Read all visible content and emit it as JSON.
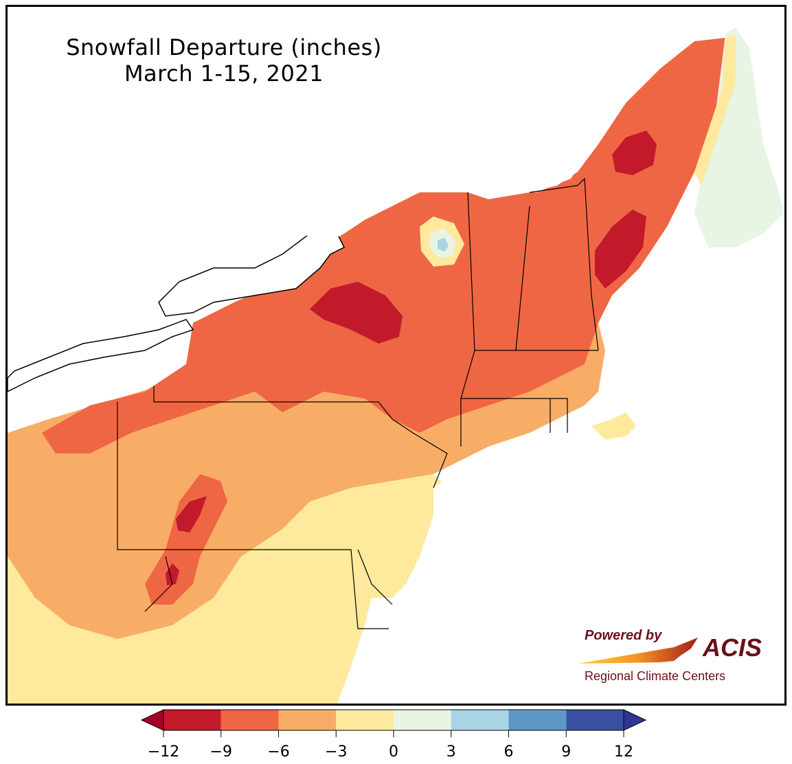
{
  "title": {
    "line1": "Snowfall Departure (inches)",
    "line2": "March 1-15, 2021"
  },
  "legend": {
    "ticks": [
      "−12",
      "−9",
      "−6",
      "−3",
      "0",
      "3",
      "6",
      "9",
      "12"
    ],
    "bins": [
      {
        "from": -12,
        "to": -9,
        "color": "#c2192b"
      },
      {
        "from": -9,
        "to": -6,
        "color": "#ef6644"
      },
      {
        "from": -6,
        "to": -3,
        "color": "#f8ad67"
      },
      {
        "from": -3,
        "to": 0,
        "color": "#fee99d"
      },
      {
        "from": 0,
        "to": 3,
        "color": "#e8f4e4"
      },
      {
        "from": 3,
        "to": 6,
        "color": "#a8d4e4"
      },
      {
        "from": 6,
        "to": 9,
        "color": "#5f98c6"
      },
      {
        "from": 9,
        "to": 12,
        "color": "#3a4fa0"
      }
    ],
    "under_color": "#a50026",
    "over_color": "#313695"
  },
  "logo": {
    "powered_by": "Powered by",
    "name": "ACIS",
    "subtitle": "Regional Climate Centers"
  },
  "colors": {
    "lake": "#ffffff",
    "ocean": "#ffffff",
    "outline": "#000000"
  }
}
